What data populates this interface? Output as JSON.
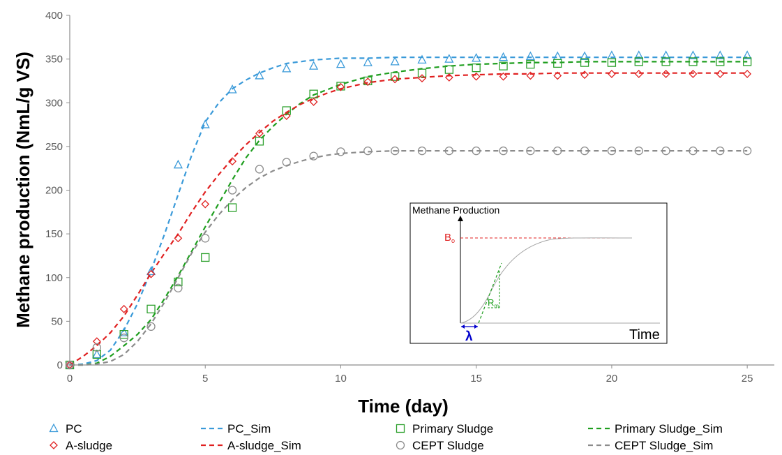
{
  "chart_data": {
    "type": "scatter",
    "xlabel": "Time (day)",
    "ylabel": "Methane production (NmL/g VS)",
    "xlim": [
      0,
      26
    ],
    "ylim": [
      0,
      400
    ],
    "xticks": [
      0,
      5,
      10,
      15,
      20,
      25
    ],
    "yticks": [
      0,
      50,
      100,
      150,
      200,
      250,
      300,
      350,
      400
    ],
    "grid": false,
    "legend_position": "bottom",
    "series": [
      {
        "name": "PC",
        "kind": "points",
        "marker": "triangle",
        "color": "#3a9ad9",
        "x": [
          0,
          1,
          2,
          3,
          4,
          5,
          6,
          7,
          8,
          9,
          10,
          11,
          12,
          13,
          14,
          15,
          16,
          17,
          18,
          19,
          20,
          21,
          22,
          23,
          24,
          25
        ],
        "y": [
          0,
          12,
          37,
          107,
          229,
          275,
          315,
          331,
          339,
          342,
          344,
          346,
          347,
          349,
          350,
          351,
          352,
          353,
          353,
          353,
          354,
          354,
          354,
          354,
          354,
          354
        ]
      },
      {
        "name": "PC_Sim",
        "kind": "line",
        "dash": "dashed",
        "color": "#3a9ad9",
        "x": [
          0,
          0.5,
          1,
          1.5,
          2,
          2.5,
          3,
          3.5,
          4,
          4.5,
          5,
          5.5,
          6,
          6.5,
          7,
          7.5,
          8,
          8.5,
          9,
          9.5,
          10,
          11,
          12,
          13,
          14,
          15,
          16,
          17,
          18,
          19,
          20,
          21,
          22,
          23,
          24,
          25
        ],
        "y": [
          0,
          1,
          5,
          17,
          40,
          70,
          108,
          150,
          195,
          240,
          278,
          300,
          316,
          326,
          334,
          340,
          345,
          347,
          349,
          350,
          351,
          351,
          352,
          352,
          352,
          352,
          352,
          352,
          352,
          352,
          352,
          352,
          352,
          352,
          352,
          352
        ]
      },
      {
        "name": "Primary Sludge",
        "kind": "points",
        "marker": "square",
        "color": "#2ca02c",
        "x": [
          0,
          1,
          2,
          3,
          4,
          5,
          6,
          7,
          8,
          9,
          10,
          11,
          12,
          13,
          14,
          15,
          16,
          17,
          18,
          19,
          20,
          21,
          22,
          23,
          24,
          25
        ],
        "y": [
          0,
          12,
          35,
          64,
          95,
          123,
          180,
          256,
          291,
          310,
          319,
          325,
          330,
          334,
          338,
          340,
          342,
          344,
          345,
          346,
          346,
          347,
          347,
          347,
          347,
          347
        ]
      },
      {
        "name": "Primary Sludge_Sim",
        "kind": "line",
        "dash": "dashed",
        "color": "#1e9e1e",
        "x": [
          0,
          0.5,
          1,
          1.5,
          2,
          2.5,
          3,
          3.5,
          4,
          4.5,
          5,
          5.5,
          6,
          6.5,
          7,
          7.5,
          8,
          8.5,
          9,
          9.5,
          10,
          11,
          12,
          13,
          14,
          15,
          16,
          17,
          18,
          19,
          20,
          21,
          22,
          23,
          24,
          25
        ],
        "y": [
          0,
          0,
          2,
          10,
          22,
          35,
          52,
          76,
          102,
          130,
          158,
          185,
          212,
          237,
          257,
          273,
          287,
          299,
          309,
          315,
          321,
          330,
          335,
          339,
          342,
          344,
          345,
          346,
          346,
          347,
          347,
          347,
          347,
          347,
          347,
          347
        ]
      },
      {
        "name": "A-sludge",
        "kind": "points",
        "marker": "diamond",
        "color": "#e02020",
        "x": [
          0,
          1,
          2,
          3,
          4,
          5,
          6,
          7,
          8,
          9,
          10,
          11,
          12,
          13,
          14,
          15,
          16,
          17,
          18,
          19,
          20,
          21,
          22,
          23,
          24,
          25
        ],
        "y": [
          0,
          27,
          64,
          104,
          145,
          184,
          233,
          265,
          285,
          301,
          318,
          324,
          327,
          328,
          329,
          330,
          330,
          331,
          331,
          332,
          333,
          333,
          333,
          333,
          333,
          333
        ]
      },
      {
        "name": "A-sludge_Sim",
        "kind": "line",
        "dash": "dashed",
        "color": "#e02020",
        "x": [
          0,
          0.5,
          1,
          1.5,
          2,
          2.5,
          3,
          3.5,
          4,
          4.5,
          5,
          5.5,
          6,
          6.5,
          7,
          7.5,
          8,
          8.5,
          9,
          9.5,
          10,
          11,
          12,
          13,
          14,
          15,
          16,
          17,
          18,
          19,
          20,
          21,
          22,
          23,
          24,
          25
        ],
        "y": [
          0,
          10,
          22,
          37,
          56,
          80,
          105,
          128,
          150,
          175,
          198,
          218,
          236,
          252,
          266,
          279,
          289,
          298,
          305,
          311,
          316,
          323,
          327,
          329,
          331,
          332,
          333,
          333,
          334,
          334,
          334,
          334,
          334,
          334,
          334,
          334
        ]
      },
      {
        "name": "CEPT Sludge",
        "kind": "points",
        "marker": "circle",
        "color": "#8c8c8c",
        "x": [
          0,
          1,
          2,
          3,
          4,
          5,
          6,
          7,
          8,
          9,
          10,
          11,
          12,
          13,
          14,
          15,
          16,
          17,
          18,
          19,
          20,
          21,
          22,
          23,
          24,
          25
        ],
        "y": [
          0,
          20,
          31,
          44,
          88,
          145,
          200,
          224,
          232,
          239,
          244,
          245,
          245,
          245,
          245,
          245,
          245,
          245,
          245,
          245,
          245,
          245,
          245,
          245,
          245,
          245
        ]
      },
      {
        "name": "CEPT Sludge_Sim",
        "kind": "line",
        "dash": "dashed",
        "color": "#8c8c8c",
        "x": [
          0,
          0.5,
          1,
          1.5,
          2,
          2.5,
          3,
          3.5,
          4,
          4.5,
          5,
          5.5,
          6,
          6.5,
          7,
          7.5,
          8,
          8.5,
          9,
          9.5,
          10,
          11,
          12,
          13,
          14,
          15,
          16,
          17,
          18,
          19,
          20,
          21,
          22,
          23,
          24,
          25
        ],
        "y": [
          0,
          0,
          1,
          4,
          12,
          27,
          47,
          72,
          100,
          128,
          152,
          172,
          189,
          203,
          214,
          222,
          228,
          233,
          237,
          240,
          242,
          244,
          245,
          245,
          245,
          245,
          245,
          245,
          245,
          245,
          245,
          245,
          245,
          245,
          245,
          245
        ]
      }
    ],
    "legend": [
      {
        "label": "PC",
        "series": 0
      },
      {
        "label": "PC_Sim",
        "series": 1
      },
      {
        "label": "Primary Sludge",
        "series": 2
      },
      {
        "label": "Primary Sludge_Sim",
        "series": 3
      },
      {
        "label": "A-sludge",
        "series": 4
      },
      {
        "label": "A-sludge_Sim",
        "series": 5
      },
      {
        "label": "CEPT Sludge",
        "series": 6
      },
      {
        "label": "CEPT Sludge_Sim",
        "series": 7
      }
    ]
  },
  "inset": {
    "ylabel": "Methane Production",
    "xlabel": "Time",
    "b0_label": "B",
    "b0_subscript": "o",
    "rm_label": "R",
    "rm_subscript": "m",
    "lambda_label": "λ",
    "colors": {
      "b0": "#e02020",
      "rm": "#1e9e1e",
      "lambda": "#0000cc",
      "curve": "#a6a6a6"
    }
  }
}
